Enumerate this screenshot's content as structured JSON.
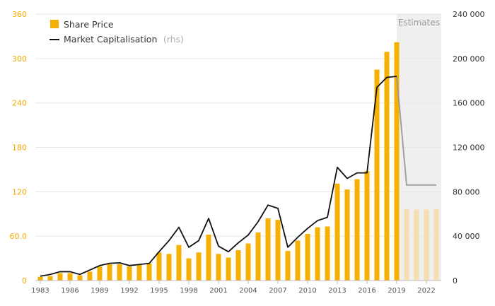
{
  "chart_data": {
    "type": "bar",
    "legend": {
      "share_price": "Share Price",
      "market_cap": "Market Capitalisation",
      "market_cap_suffix": "(rhs)",
      "placement": "top-left"
    },
    "estimates_label": "Estimates",
    "colors": {
      "bar": "#f5b000",
      "bar_estimate": "#f5deb0",
      "line": "#111111",
      "line_estimate": "#9a9a9a",
      "estimate_band": "#efefef",
      "grid": "#e6e6e6",
      "left_axis": "#f5a800",
      "right_axis": "#333333"
    },
    "grid": true,
    "y_left": {
      "range": [
        0,
        360
      ],
      "ticks": [
        0,
        60,
        120,
        180,
        240,
        300,
        360
      ],
      "tick_labels": [
        "0",
        "60.0",
        "120",
        "180",
        "240",
        "300",
        "360"
      ]
    },
    "y_right": {
      "range": [
        0,
        240000
      ],
      "ticks": [
        0,
        40000,
        80000,
        120000,
        160000,
        200000,
        240000
      ],
      "tick_labels": [
        "0",
        "40 000",
        "80 000",
        "120 000",
        "160 000",
        "200 000",
        "240 000"
      ]
    },
    "x_tick_labels": [
      "1983",
      "1986",
      "1989",
      "1992",
      "1995",
      "1998",
      "2001",
      "2004",
      "2007",
      "2010",
      "2013",
      "2016",
      "2019",
      "2022"
    ],
    "years": [
      1983,
      1984,
      1985,
      1986,
      1987,
      1988,
      1989,
      1990,
      1991,
      1992,
      1993,
      1994,
      1995,
      1996,
      1997,
      1998,
      1999,
      2000,
      2001,
      2002,
      2003,
      2004,
      2005,
      2006,
      2007,
      2008,
      2009,
      2010,
      2011,
      2012,
      2013,
      2014,
      2015,
      2016,
      2017,
      2018,
      2019,
      2020,
      2021,
      2022,
      2023
    ],
    "estimate_from_year": 2020,
    "series": [
      {
        "name": "Share Price",
        "axis": "left",
        "kind": "bar",
        "values": [
          5,
          6,
          10,
          10,
          7,
          12,
          19,
          22,
          22,
          19,
          21,
          23,
          38,
          36,
          48,
          30,
          38,
          62,
          36,
          31,
          41,
          50,
          65,
          84,
          82,
          40,
          54,
          63,
          72,
          73,
          131,
          123,
          137,
          148,
          285,
          309,
          322,
          96,
          96,
          96,
          96
        ]
      },
      {
        "name": "Market Capitalisation",
        "axis": "right",
        "kind": "line",
        "values": [
          4000,
          5500,
          8000,
          8000,
          5500,
          9500,
          13500,
          15500,
          16000,
          13500,
          14500,
          15500,
          26000,
          36000,
          48000,
          30000,
          36000,
          56000,
          31000,
          26000,
          34000,
          41000,
          53000,
          68000,
          65000,
          30000,
          39000,
          47000,
          54000,
          57000,
          102000,
          92000,
          97000,
          97000,
          174000,
          183000,
          184000,
          86000,
          86000,
          86000,
          86000
        ]
      }
    ]
  }
}
